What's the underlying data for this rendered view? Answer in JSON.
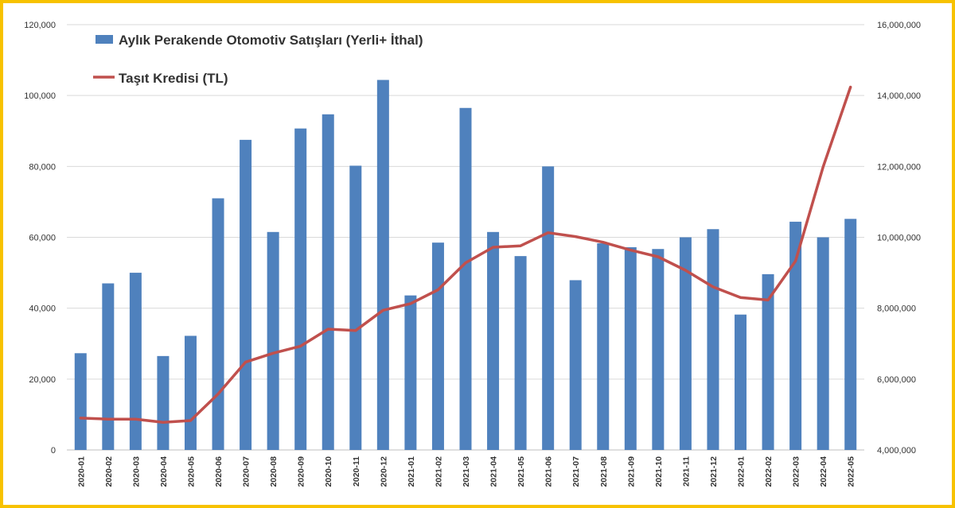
{
  "chart_data": {
    "type": "bar",
    "categories": [
      "2020-01",
      "2020-02",
      "2020-03",
      "2020-04",
      "2020-05",
      "2020-06",
      "2020-07",
      "2020-08",
      "2020-09",
      "2020-10",
      "2020-11",
      "2020-12",
      "2021-01",
      "2021-02",
      "2021-03",
      "2021-04",
      "2021-05",
      "2021-06",
      "2021-07",
      "2021-08",
      "2021-09",
      "2021-10",
      "2021-11",
      "2021-12",
      "2022-01",
      "2022-02",
      "2022-03",
      "2022-04",
      "2022-05"
    ],
    "series": [
      {
        "name": "Aylık Perakende Otomotiv Satışları (Yerli+ İthal)",
        "type": "bar",
        "axis": "left",
        "color": "#4f81bd",
        "values": [
          27300,
          47000,
          50000,
          26500,
          32200,
          71000,
          87500,
          61500,
          90700,
          94700,
          80200,
          104400,
          43600,
          58500,
          96500,
          61500,
          54700,
          80000,
          47900,
          58300,
          57200,
          56700,
          60000,
          62300,
          38200,
          49600,
          64400,
          60000,
          65200
        ]
      },
      {
        "name": "Taşıt Kredisi (TL)",
        "type": "line",
        "axis": "right",
        "color": "#c0504d",
        "values": [
          4900000,
          4870000,
          4870000,
          4780000,
          4830000,
          5580000,
          6480000,
          6730000,
          6930000,
          7410000,
          7370000,
          7940000,
          8130000,
          8520000,
          9280000,
          9720000,
          9760000,
          10130000,
          10020000,
          9860000,
          9640000,
          9450000,
          9070000,
          8600000,
          8300000,
          8230000,
          9330000,
          11980000,
          14240000
        ]
      }
    ],
    "y_left": {
      "min": 0,
      "max": 120000,
      "step": 20000,
      "tick_labels": [
        "0",
        "20,000",
        "40,000",
        "60,000",
        "80,000",
        "100,000",
        "120,000"
      ]
    },
    "y_right": {
      "min": 4000000,
      "max": 16000000,
      "step": 2000000,
      "tick_labels": [
        "4,000,000",
        "6,000,000",
        "8,000,000",
        "10,000,000",
        "12,000,000",
        "14,000,000",
        "16,000,000"
      ]
    },
    "grid": true,
    "legend_position": "top-left"
  }
}
